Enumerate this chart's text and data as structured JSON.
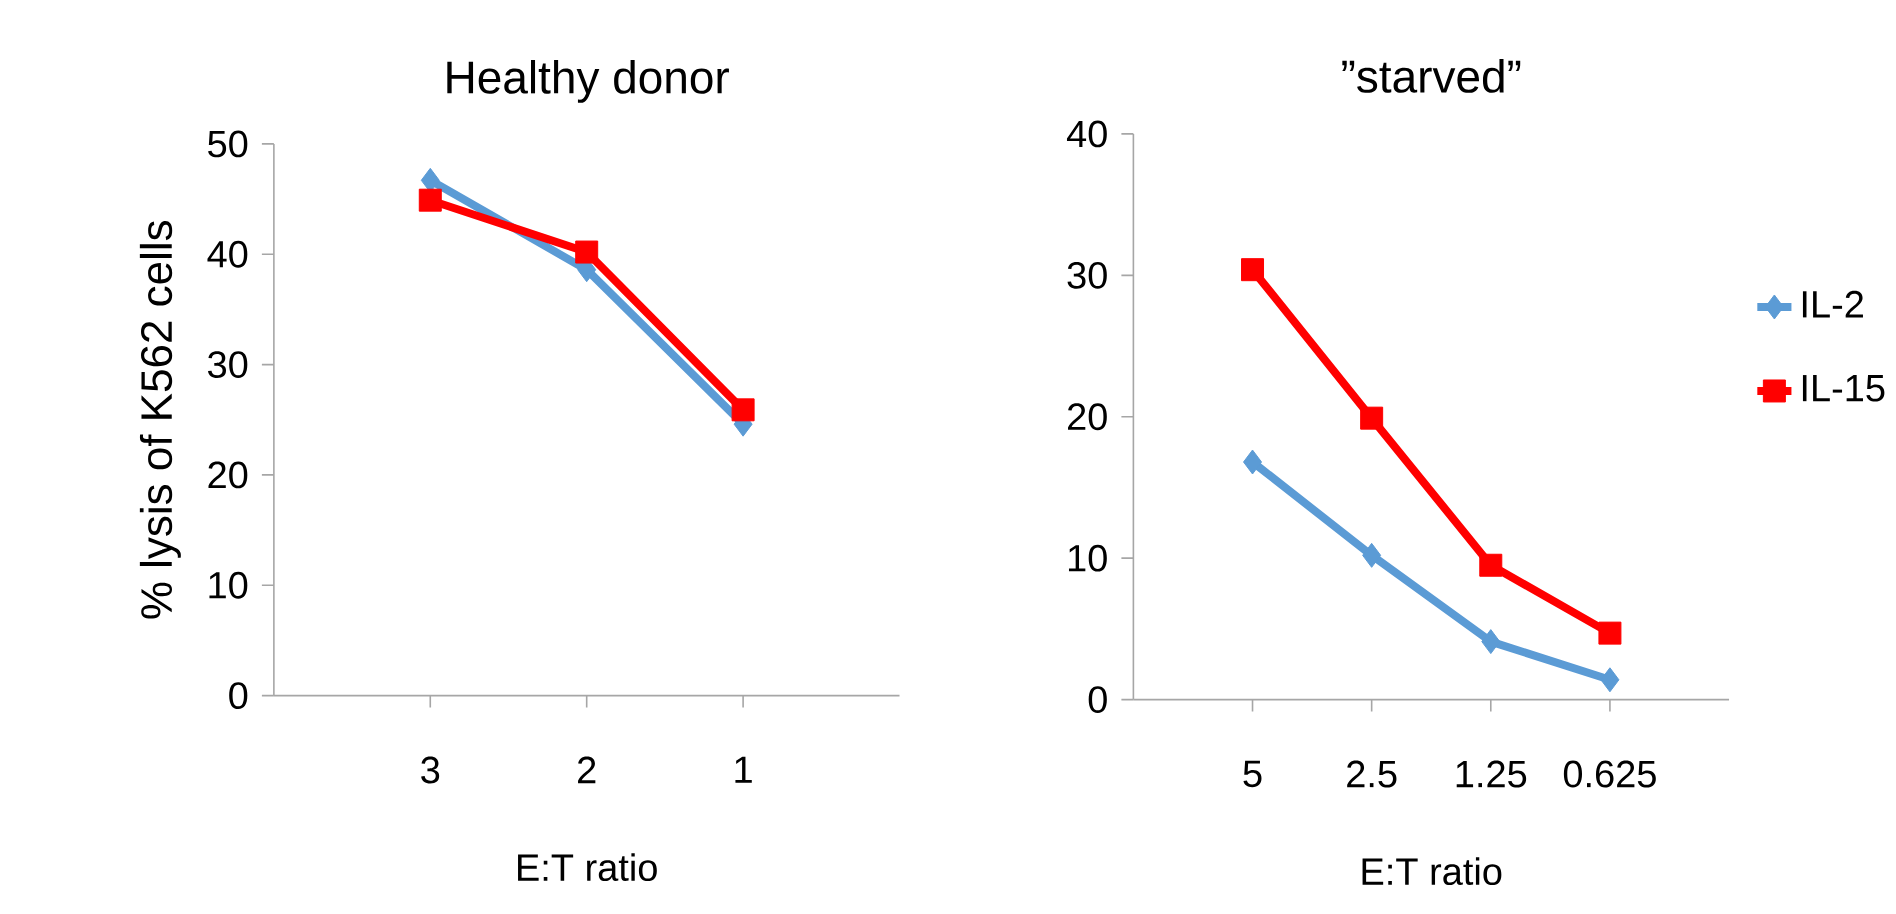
{
  "chart_data": [
    {
      "type": "line",
      "title": "Healthy donor",
      "xlabel": "E:T ratio",
      "ylabel": "% lysis of K562 cells",
      "categories": [
        "3",
        "2",
        "1"
      ],
      "ylim": [
        0,
        50
      ],
      "yticks": [
        0,
        10,
        20,
        30,
        40,
        50
      ],
      "series": [
        {
          "color": "#5b9bd5",
          "marker": "diamond",
          "values": [
            46.7,
            38.6,
            24.6
          ]
        },
        {
          "color": "#ff0000",
          "marker": "square",
          "values": [
            44.9,
            40.2,
            25.9
          ]
        }
      ]
    },
    {
      "type": "line",
      "title": "”starved”",
      "xlabel": "E:T ratio",
      "categories": [
        "5",
        "2.5",
        "1.25",
        "0.625"
      ],
      "ylim": [
        0,
        40
      ],
      "yticks": [
        0,
        10,
        20,
        30,
        40
      ],
      "legend": "right",
      "series": [
        {
          "name": "IL-2",
          "color": "#5b9bd5",
          "marker": "diamond",
          "values": [
            16.8,
            10.2,
            4.1,
            1.4
          ]
        },
        {
          "name": "IL-15",
          "color": "#ff0000",
          "marker": "square",
          "values": [
            30.4,
            19.9,
            9.5,
            4.7
          ]
        }
      ]
    }
  ]
}
